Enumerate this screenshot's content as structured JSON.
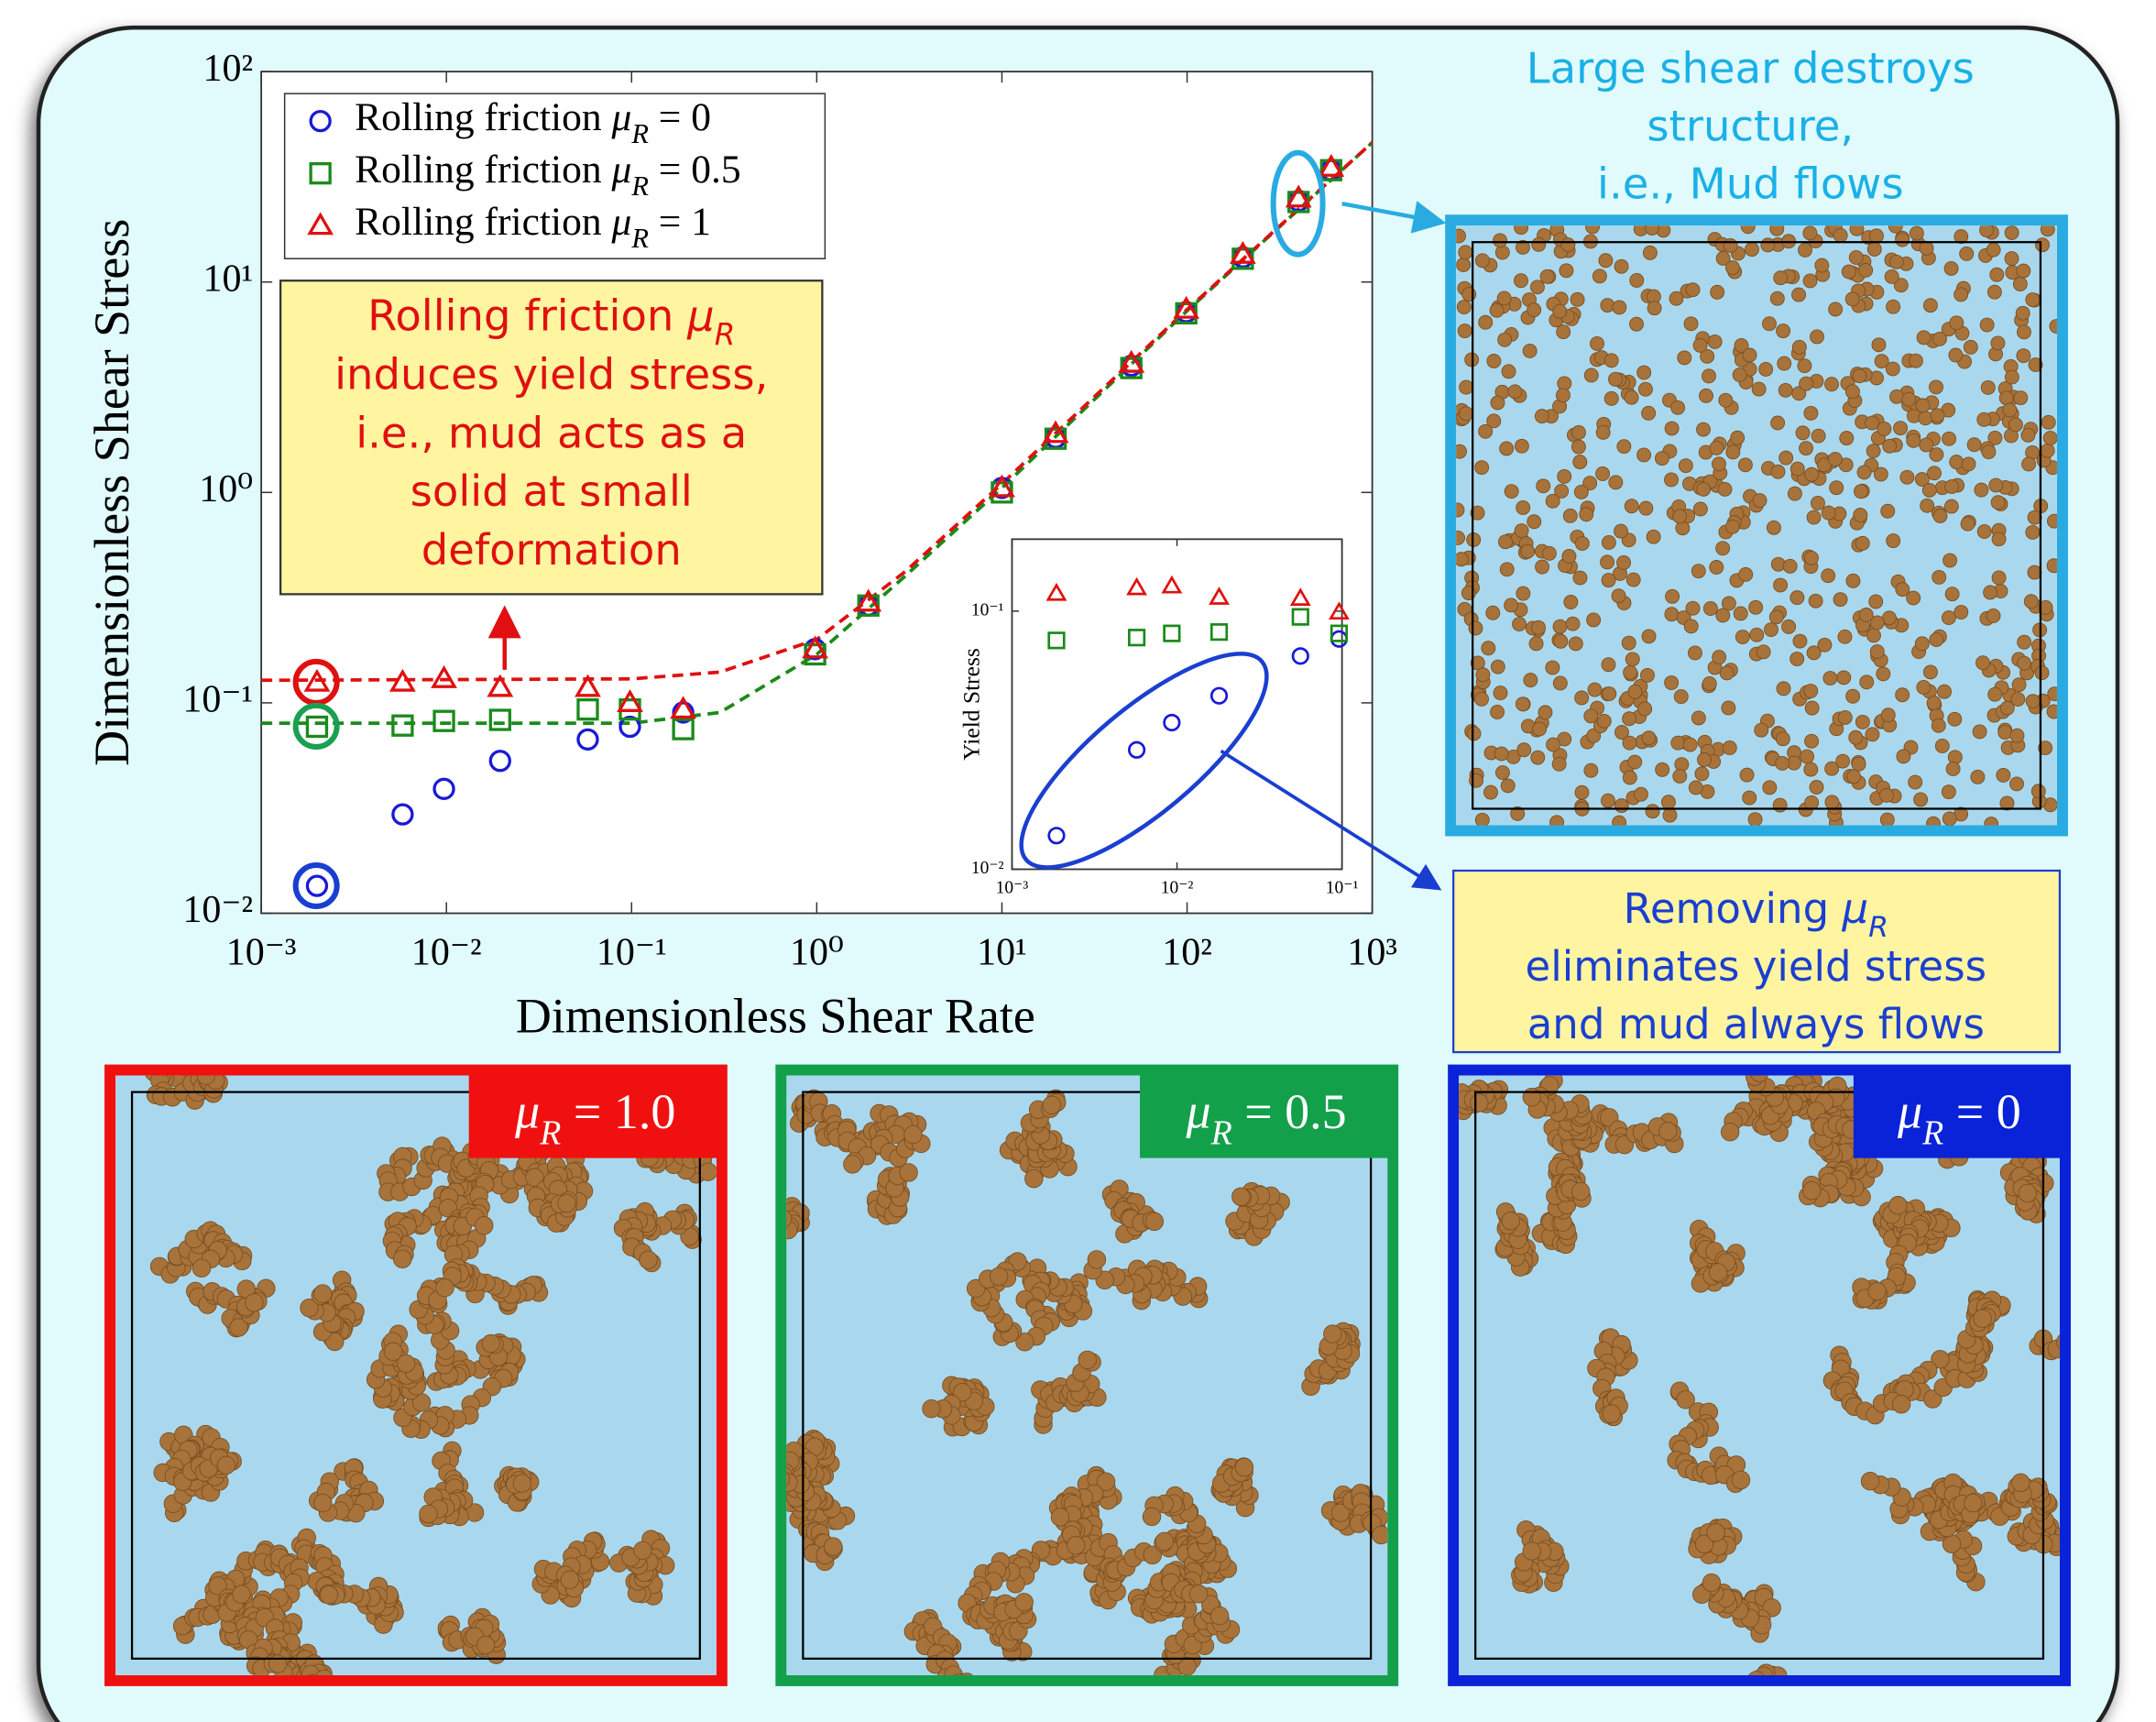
{
  "chart_data": [
    {
      "type": "scatter",
      "x_label": "Dimensionless Shear Rate",
      "y_label": "Dimensionless Shear Stress",
      "x_scale": "log",
      "y_scale": "log",
      "xlim": [
        0.001,
        1000
      ],
      "ylim": [
        0.01,
        100
      ],
      "xticks": [
        {
          "value": 0.001,
          "label": "10⁻³"
        },
        {
          "value": 0.01,
          "label": "10⁻²"
        },
        {
          "value": 0.1,
          "label": "10⁻¹"
        },
        {
          "value": 1,
          "label": "10⁰"
        },
        {
          "value": 10,
          "label": "10¹"
        },
        {
          "value": 100,
          "label": "10²"
        },
        {
          "value": 1000,
          "label": "10³"
        }
      ],
      "yticks": [
        {
          "value": 0.01,
          "label": "10⁻²"
        },
        {
          "value": 0.1,
          "label": "10⁻¹"
        },
        {
          "value": 1,
          "label": "10⁰"
        },
        {
          "value": 10,
          "label": "10¹"
        },
        {
          "value": 100,
          "label": "10²"
        }
      ],
      "legend": "upper left",
      "x": [
        0.002,
        0.0058,
        0.0097,
        0.0195,
        0.058,
        0.098,
        0.19,
        0.98,
        1.9,
        10,
        19.5,
        50,
        99,
        200,
        400,
        600
      ],
      "series": [
        {
          "name": "Rolling friction μR = 0",
          "color": "#1a1ad6",
          "marker": "circle",
          "values": [
            0.0135,
            0.0295,
            0.039,
            0.053,
            0.067,
            0.077,
            0.09,
            0.18,
            0.29,
            1.05,
            1.82,
            4.0,
            7.2,
            13.1,
            24.3,
            34
          ]
        },
        {
          "name": "Rolling friction μR = 0.5",
          "color": "#1a8a1a",
          "marker": "square",
          "values": [
            0.077,
            0.078,
            0.082,
            0.083,
            0.093,
            0.093,
            0.075,
            0.17,
            0.29,
            1.0,
            1.8,
            3.9,
            7.1,
            12.9,
            24,
            34
          ]
        },
        {
          "name": "Rolling friction μR = 1",
          "color": "#e01010",
          "marker": "triangle",
          "values": [
            0.125,
            0.125,
            0.13,
            0.118,
            0.118,
            0.1,
            0.093,
            0.18,
            0.3,
            1.05,
            1.9,
            4.1,
            7.4,
            13.5,
            25,
            35
          ]
        }
      ],
      "fit_lines": {
        "x": [
          0.001,
          0.1,
          0.3,
          1,
          3,
          10,
          100,
          1000
        ],
        "series": [
          {
            "color": "#1a8a1a",
            "values": [
              0.08,
              0.08,
              0.09,
              0.17,
              0.4,
              1.05,
              7.3,
              46
            ]
          },
          {
            "color": "#e01010",
            "values": [
              0.128,
              0.13,
              0.14,
              0.2,
              0.42,
              1.1,
              7.4,
              46
            ]
          }
        ]
      }
    },
    {
      "type": "scatter",
      "y_label": "Yield Stress",
      "x_scale": "log",
      "y_scale": "log",
      "xlim": [
        0.001,
        0.1
      ],
      "ylim": [
        0.01,
        0.19
      ],
      "xticks": [
        {
          "value": 0.001,
          "label": "10⁻³"
        },
        {
          "value": 0.01,
          "label": "10⁻²"
        },
        {
          "value": 0.1,
          "label": "10⁻¹"
        }
      ],
      "yticks": [
        {
          "value": 0.01,
          "label": "10⁻²"
        },
        {
          "value": 0.1,
          "label": "10⁻¹"
        }
      ],
      "x": [
        0.00186,
        0.0057,
        0.0093,
        0.018,
        0.056,
        0.096
      ],
      "series": [
        {
          "color": "#1a1ad6",
          "marker": "circle",
          "values": [
            0.0135,
            0.029,
            0.037,
            0.047,
            0.067,
            0.078
          ]
        },
        {
          "color": "#1a8a1a",
          "marker": "square",
          "values": [
            0.077,
            0.079,
            0.082,
            0.083,
            0.095,
            0.082
          ]
        },
        {
          "color": "#e01010",
          "marker": "triangle",
          "values": [
            0.117,
            0.123,
            0.125,
            0.113,
            0.112,
            0.099
          ]
        }
      ]
    }
  ],
  "annotations": {
    "yield_note": [
      "Rolling friction μR",
      "induces yield stress,",
      "i.e., mud acts as a",
      "solid at small",
      "deformation"
    ],
    "flow_note": [
      "Large shear destroys",
      "structure,",
      "i.e., Mud flows"
    ],
    "removal_note": [
      "Removing μR",
      "eliminates yield stress",
      "and mud always flows"
    ]
  },
  "panels": [
    {
      "label": "μR = 1.0",
      "color": "#f01010"
    },
    {
      "label": "μR = 0.5",
      "color": "#12a04a"
    },
    {
      "label": "μR = 0",
      "color": "#0a22d8"
    }
  ]
}
